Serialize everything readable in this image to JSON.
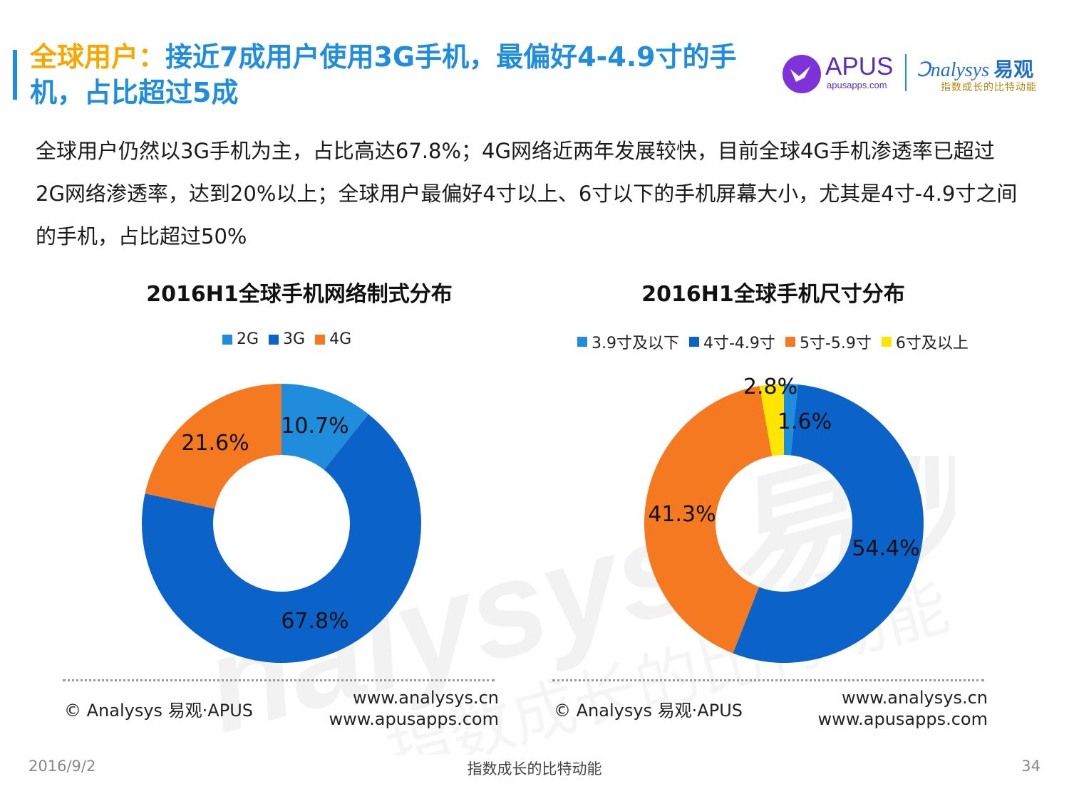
{
  "header": {
    "title_highlight": "全球用户：",
    "title_rest": "接近7成用户使用3G手机，最偏好4-4.9寸的手机，占比超过5成"
  },
  "logos": {
    "apus_name": "APUS",
    "apus_url": "apusapps.com",
    "analysys_name": "nalysys",
    "analysys_cn": "易观",
    "analysys_slogan": "指数成长的比特动能"
  },
  "body_text": "全球用户仍然以3G手机为主，占比高达67.8%；4G网络近两年发展较快，目前全球4G手机渗透率已超过2G网络渗透率，达到20%以上；全球用户最偏好4寸以上、6寸以下的手机屏幕大小，尤其是4寸-4.9寸之间的手机，占比超过50%",
  "chart_data": [
    {
      "type": "pie",
      "title": "2016H1全球手机网络制式分布",
      "categories": [
        "2G",
        "3G",
        "4G"
      ],
      "values": [
        10.7,
        67.8,
        21.6
      ],
      "labels": [
        "10.7%",
        "67.8%",
        "21.6%"
      ],
      "colors": [
        "#1F8DDB",
        "#0B62C9",
        "#F47920"
      ],
      "legend_position": "top"
    },
    {
      "type": "pie",
      "title": "2016H1全球手机尺寸分布",
      "categories": [
        "3.9寸及以下",
        "4寸-4.9寸",
        "5寸-5.9寸",
        "6寸及以上"
      ],
      "values": [
        1.6,
        54.4,
        41.3,
        2.8
      ],
      "labels": [
        "1.6%",
        "54.4%",
        "41.3%",
        "2.8%"
      ],
      "colors": [
        "#1F8DDB",
        "#0B62C9",
        "#F47920",
        "#FFE500"
      ],
      "legend_position": "top"
    }
  ],
  "sources": {
    "copyright": "© Analysys 易观·APUS",
    "url1": "www.analysys.cn",
    "url2": "www.apusapps.com"
  },
  "footer": {
    "date": "2016/9/2",
    "slogan": "指数成长的比特动能",
    "page": "34"
  }
}
